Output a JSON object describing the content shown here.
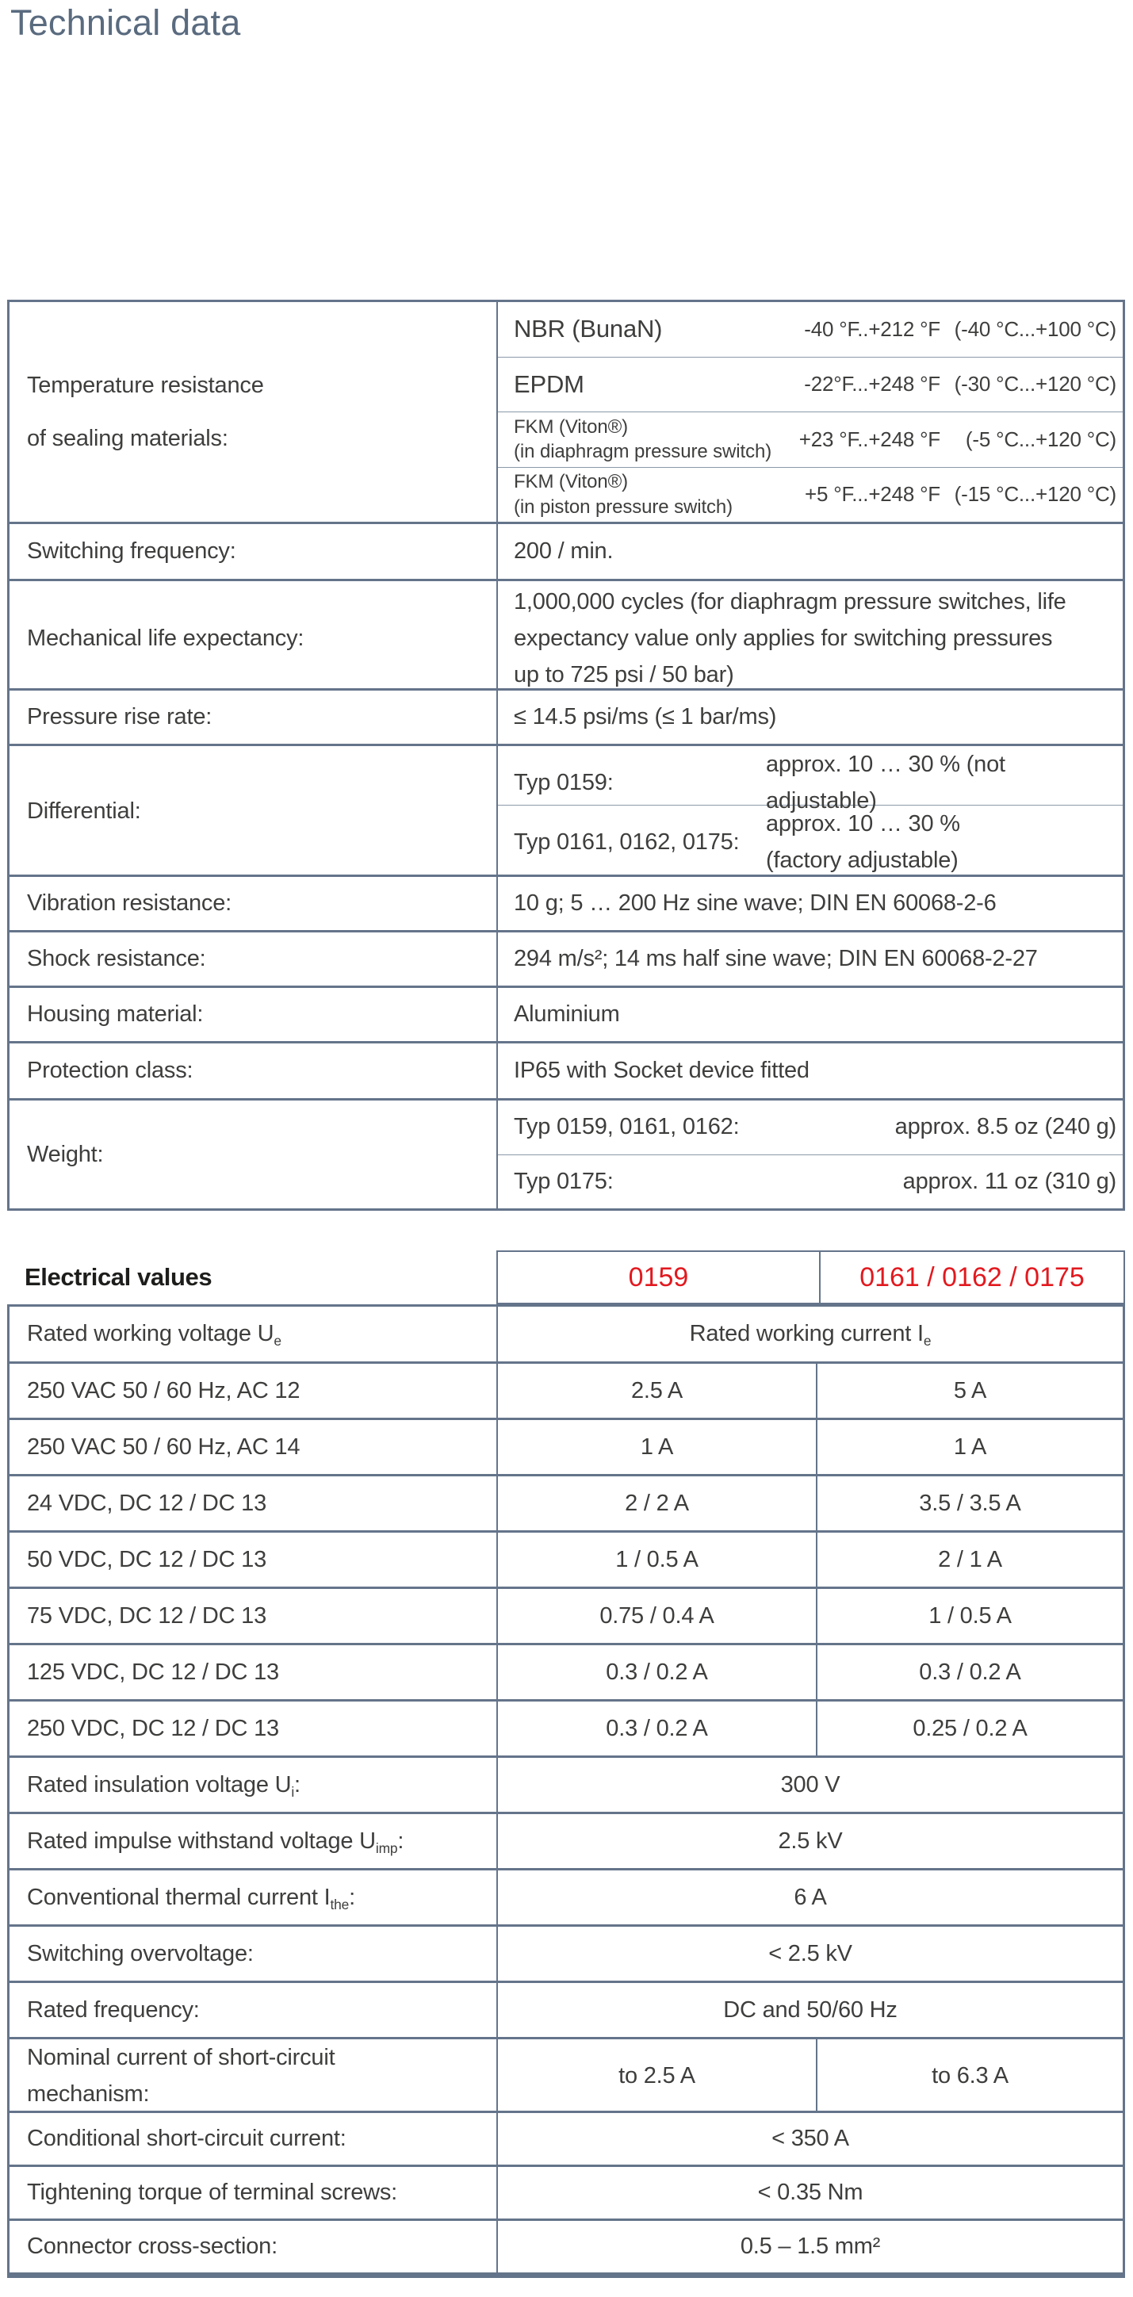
{
  "page": {
    "title": "Technical data"
  },
  "colors": {
    "accent_red": "#e2191f",
    "border_slate": "#64748a",
    "title_slate": "#5a6b7f",
    "text_gray": "#3e3e3d"
  },
  "general_table": {
    "sealing": {
      "label_line1": "Temperature resistance",
      "label_line2": "of sealing materials:",
      "materials": [
        {
          "name": "NBR (BunaN)",
          "detail": "",
          "range_f": "-40 °F..+212 °F",
          "range_c": "(-40 °C...+100 °C)"
        },
        {
          "name": "EPDM",
          "detail": "",
          "range_f": "-22°F...+248 °F",
          "range_c": "(-30 °C...+120 °C)"
        },
        {
          "name": "FKM (Viton®)",
          "detail": "(in diaphragm pressure switch)",
          "range_f": "+23 °F..+248 °F",
          "range_c": "(-5 °C...+120 °C)"
        },
        {
          "name": "FKM (Viton®)",
          "detail": "(in piston pressure switch)",
          "range_f": "+5 °F...+248 °F",
          "range_c": "(-15 °C...+120 °C)"
        }
      ]
    },
    "switching_frequency": {
      "label": "Switching frequency:",
      "value": "200 / min."
    },
    "mechanical_life": {
      "label": "Mechanical life expectancy:",
      "value": "1,000,000 cycles (for diaphragm pressure switches, life expectancy value only applies for switching pressures up to 725 psi / 50 bar)"
    },
    "pressure_rise": {
      "label": "Pressure rise rate:",
      "value": "≤ 14.5 psi/ms  (≤ 1 bar/ms)"
    },
    "differential": {
      "label": "Differential:",
      "rows": [
        {
          "type_label": "Typ 0159:",
          "value_line1": "approx. 10 … 30 % (not adjustable)",
          "value_line2": ""
        },
        {
          "type_label": "Typ 0161, 0162, 0175:",
          "value_line1": "approx. 10 … 30 %",
          "value_line2": "(factory adjustable)"
        }
      ]
    },
    "vibration": {
      "label": "Vibration resistance:",
      "value": "10 g;  5 … 200 Hz sine wave;  DIN EN 60068-2-6"
    },
    "shock": {
      "label": "Shock resistance:",
      "value": "294 m/s²;  14 ms half sine wave;  DIN EN 60068-2-27"
    },
    "housing": {
      "label": "Housing material:",
      "value": "Aluminium"
    },
    "protection": {
      "label": "Protection class:",
      "value": "IP65 with Socket device fitted"
    },
    "weight": {
      "label": "Weight:",
      "rows": [
        {
          "type_label": "Typ 0159, 0161, 0162:",
          "value": "approx. 8.5 oz (240 g)"
        },
        {
          "type_label": "Typ 0175:",
          "value": "approx. 11 oz (310 g)"
        }
      ]
    }
  },
  "electrical_table": {
    "title": "Electrical values",
    "col_0159": "0159",
    "col_016x": "0161 / 0162 / 0175",
    "voltage_header": {
      "pre": "Rated working voltage U",
      "sub": "e",
      "post": ""
    },
    "current_header": {
      "pre": "Rated working current I",
      "sub": "e",
      "post": ""
    },
    "rows": [
      {
        "label": "250 VAC 50 / 60 Hz, AC 12",
        "v0159": "2.5 A",
        "v016x": "5 A"
      },
      {
        "label": "250 VAC 50 / 60 Hz, AC 14",
        "v0159": "1 A",
        "v016x": "1 A"
      },
      {
        "label": "24 VDC, DC 12 / DC 13",
        "v0159": "2 / 2 A",
        "v016x": "3.5 / 3.5 A"
      },
      {
        "label": "50 VDC, DC 12 / DC 13",
        "v0159": "1 / 0.5 A",
        "v016x": "2 / 1 A"
      },
      {
        "label": "75 VDC, DC 12 / DC 13",
        "v0159": "0.75 / 0.4 A",
        "v016x": "1 / 0.5 A"
      },
      {
        "label": "125 VDC, DC 12 / DC 13",
        "v0159": "0.3 / 0.2 A",
        "v016x": "0.3 / 0.2 A"
      },
      {
        "label": "250 VDC, DC 12 / DC 13",
        "v0159": "0.3 / 0.2 A",
        "v016x": "0.25 / 0.2 A"
      }
    ],
    "merged_rows": [
      {
        "pre": "Rated insulation voltage U",
        "sub": "i",
        "post": ":",
        "value": "300 V"
      },
      {
        "pre": "Rated impulse withstand voltage U",
        "sub": "imp",
        "post": ":",
        "value": "2.5 kV"
      },
      {
        "pre": "Conventional thermal current I",
        "sub": "the",
        "post": ":",
        "value": "6 A"
      },
      {
        "pre": "Switching overvoltage:",
        "sub": "",
        "post": "",
        "value": "< 2.5 kV"
      },
      {
        "pre": "Rated frequency:",
        "sub": "",
        "post": "",
        "value": "DC and 50/60 Hz"
      }
    ],
    "nominal_current": {
      "label_line1": "Nominal current of short-circuit",
      "label_line2": "mechanism:",
      "v0159": "to 2.5 A",
      "v016x": "to 6.3 A"
    },
    "tail_rows": [
      {
        "label": "Conditional short-circuit current:",
        "value": "< 350 A"
      },
      {
        "label": "Tightening torque of terminal screws:",
        "value": "< 0.35 Nm"
      },
      {
        "label": "Connector cross-section:",
        "value": "0.5 – 1.5 mm²"
      }
    ]
  }
}
